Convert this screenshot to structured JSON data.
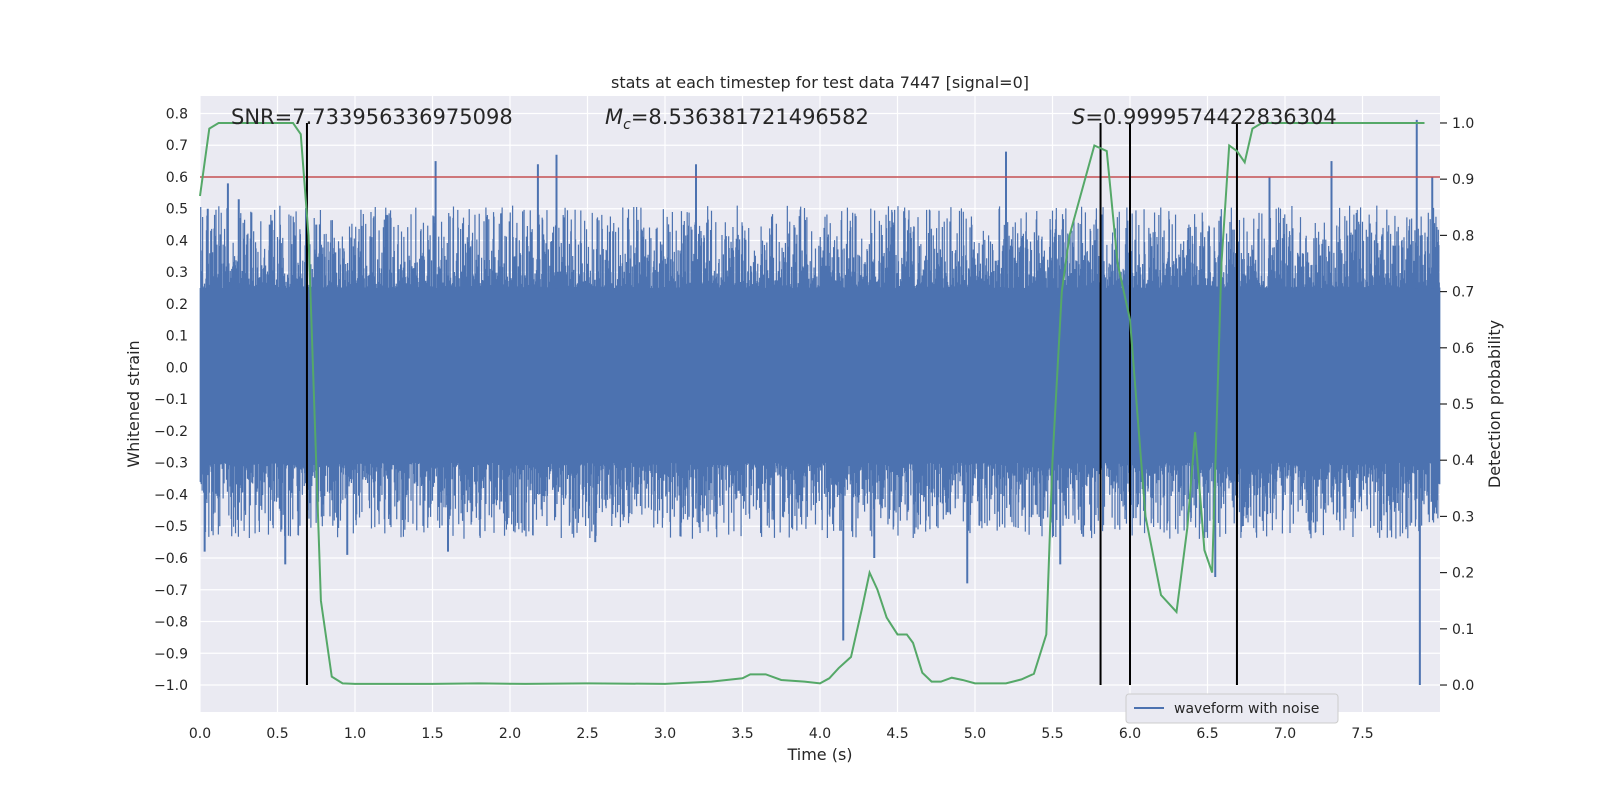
{
  "chart_data": {
    "type": "line",
    "title": "stats at each timestep for test data 7447 [signal=0]",
    "xlabel": "Time (s)",
    "ylabel": "Whitened strain",
    "y2label": "Detection probability",
    "xlim": [
      0.0,
      8.0
    ],
    "ylim": [
      -1.085,
      0.855
    ],
    "y2lim": [
      -0.048,
      1.048
    ],
    "xticks": [
      "0.0",
      "0.5",
      "1.0",
      "1.5",
      "2.0",
      "2.5",
      "3.0",
      "3.5",
      "4.0",
      "4.5",
      "5.0",
      "5.5",
      "6.0",
      "6.5",
      "7.0",
      "7.5"
    ],
    "xtick_values": [
      0.0,
      0.5,
      1.0,
      1.5,
      2.0,
      2.5,
      3.0,
      3.5,
      4.0,
      4.5,
      5.0,
      5.5,
      6.0,
      6.5,
      7.0,
      7.5
    ],
    "yticks": [
      "0.8",
      "0.7",
      "0.6",
      "0.5",
      "0.4",
      "0.3",
      "0.2",
      "0.1",
      "0.0",
      "−0.1",
      "−0.2",
      "−0.3",
      "−0.4",
      "−0.5",
      "−0.6",
      "−0.7",
      "−0.8",
      "−0.9",
      "−1.0"
    ],
    "ytick_values": [
      0.8,
      0.7,
      0.6,
      0.5,
      0.4,
      0.3,
      0.2,
      0.1,
      0.0,
      -0.1,
      -0.2,
      -0.3,
      -0.4,
      -0.5,
      -0.6,
      -0.7,
      -0.8,
      -0.9,
      -1.0
    ],
    "y2ticks": [
      "1.0",
      "0.9",
      "0.8",
      "0.7",
      "0.6",
      "0.5",
      "0.4",
      "0.3",
      "0.2",
      "0.1",
      "0.0"
    ],
    "y2tick_values": [
      1.0,
      0.9,
      0.8,
      0.7,
      0.6,
      0.5,
      0.4,
      0.3,
      0.2,
      0.1,
      0.0
    ],
    "annotations": {
      "snr": "SNR=7.733956336975098",
      "mc_symbol": "M",
      "mc_sub": "c",
      "mc_value": "=8.536381721496582",
      "s_symbol": "S",
      "s_value": "=0.9999574422836304"
    },
    "threshold_y": 0.6,
    "vertical_lines_x": [
      0.69,
      5.81,
      6.0,
      6.69
    ],
    "legend": {
      "label": "waveform with noise",
      "placement": "lower-right"
    },
    "waveform": {
      "name": "waveform with noise",
      "color": "#4c72b0",
      "core_band": [
        -0.3,
        0.25
      ],
      "peaks": [
        [
          0.03,
          -0.58
        ],
        [
          0.05,
          0.5
        ],
        [
          0.18,
          0.58
        ],
        [
          0.25,
          0.53
        ],
        [
          0.45,
          0.45
        ],
        [
          0.55,
          -0.62
        ],
        [
          0.75,
          0.45
        ],
        [
          0.95,
          -0.59
        ],
        [
          1.2,
          0.48
        ],
        [
          1.52,
          0.65
        ],
        [
          1.6,
          -0.58
        ],
        [
          2.18,
          0.64
        ],
        [
          2.3,
          0.67
        ],
        [
          2.55,
          -0.55
        ],
        [
          3.2,
          0.64
        ],
        [
          4.15,
          -0.86
        ],
        [
          4.35,
          -0.6
        ],
        [
          4.95,
          -0.68
        ],
        [
          5.2,
          0.68
        ],
        [
          5.55,
          -0.62
        ],
        [
          6.55,
          -0.66
        ],
        [
          6.6,
          -0.05
        ],
        [
          6.9,
          0.6
        ],
        [
          7.3,
          0.65
        ],
        [
          7.85,
          0.78
        ],
        [
          7.87,
          -1.0
        ],
        [
          7.95,
          0.6
        ]
      ]
    },
    "detection_probability": {
      "name": "detection probability",
      "color": "#55a868",
      "x": [
        0.0,
        0.06,
        0.12,
        0.2,
        0.3,
        0.4,
        0.5,
        0.6,
        0.65,
        0.7,
        0.78,
        0.85,
        0.92,
        1.0,
        1.2,
        1.5,
        1.8,
        2.1,
        2.5,
        3.0,
        3.3,
        3.5,
        3.55,
        3.65,
        3.75,
        3.9,
        4.0,
        4.06,
        4.12,
        4.2,
        4.27,
        4.32,
        4.37,
        4.43,
        4.5,
        4.56,
        4.6,
        4.66,
        4.72,
        4.78,
        4.85,
        4.92,
        5.0,
        5.1,
        5.2,
        5.3,
        5.38,
        5.46,
        5.5,
        5.56,
        5.61,
        5.68,
        5.77,
        5.85,
        5.92,
        6.0,
        6.1,
        6.2,
        6.3,
        6.37,
        6.42,
        6.48,
        6.53,
        6.59,
        6.64,
        6.69,
        6.74,
        6.79,
        6.85,
        6.9,
        7.0,
        7.2,
        7.5,
        7.9
      ],
      "values": [
        0.87,
        0.99,
        1.0,
        1.0,
        1.0,
        1.0,
        1.0,
        1.0,
        0.98,
        0.8,
        0.15,
        0.015,
        0.003,
        0.002,
        0.002,
        0.002,
        0.003,
        0.002,
        0.003,
        0.002,
        0.006,
        0.012,
        0.019,
        0.019,
        0.009,
        0.006,
        0.003,
        0.012,
        0.03,
        0.05,
        0.135,
        0.2,
        0.17,
        0.12,
        0.09,
        0.09,
        0.075,
        0.022,
        0.006,
        0.006,
        0.013,
        0.009,
        0.003,
        0.003,
        0.003,
        0.01,
        0.02,
        0.09,
        0.4,
        0.7,
        0.8,
        0.87,
        0.96,
        0.95,
        0.75,
        0.65,
        0.3,
        0.16,
        0.13,
        0.28,
        0.45,
        0.24,
        0.2,
        0.75,
        0.96,
        0.95,
        0.93,
        0.99,
        1.0,
        1.0,
        1.0,
        1.0,
        1.0,
        1.0
      ]
    },
    "colors": {
      "plot_bg": "#eaeaf2",
      "grid": "#ffffff",
      "threshold": "#c44e52",
      "vline": "#000000",
      "text": "#262626",
      "legend_border": "#cccccc"
    }
  }
}
